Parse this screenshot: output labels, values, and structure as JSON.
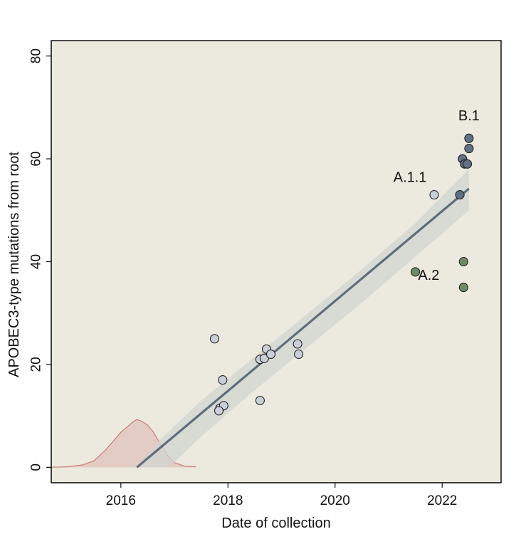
{
  "chart_data": {
    "type": "scatter",
    "xlabel": "Date of collection",
    "ylabel": "APOBEC3-type mutations from root",
    "xlim": [
      2014.7,
      2023.1
    ],
    "ylim": [
      -3,
      83
    ],
    "xticks": [
      2016,
      2018,
      2020,
      2022
    ],
    "yticks": [
      0,
      20,
      40,
      60,
      80
    ],
    "colors": {
      "panel": "#ece9df",
      "ribbon": "#d2d4d0",
      "regression_line": "#5d6e7d",
      "density_fill": "#e2c7bf",
      "density_line": "#c97f74",
      "point_outline": "#222222"
    },
    "series": [
      {
        "label_key": "light",
        "color": "#c9cfd9",
        "points": [
          [
            2017.75,
            25
          ],
          [
            2017.9,
            17
          ],
          [
            2017.85,
            11.5
          ],
          [
            2017.92,
            12
          ],
          [
            2017.83,
            11
          ],
          [
            2018.6,
            13
          ],
          [
            2018.6,
            21
          ],
          [
            2018.68,
            21.2
          ],
          [
            2018.72,
            23
          ],
          [
            2018.8,
            22
          ],
          [
            2019.3,
            24
          ],
          [
            2019.32,
            22
          ],
          [
            2021.85,
            53
          ]
        ]
      },
      {
        "label_key": "dark",
        "color": "#5f7182",
        "points": [
          [
            2022.33,
            53
          ],
          [
            2022.38,
            60
          ],
          [
            2022.42,
            59
          ],
          [
            2022.47,
            59
          ],
          [
            2022.5,
            62
          ],
          [
            2022.5,
            64
          ]
        ]
      },
      {
        "label_key": "green",
        "color": "#708a68",
        "points": [
          [
            2021.5,
            38
          ],
          [
            2022.4,
            40
          ],
          [
            2022.4,
            35
          ]
        ]
      }
    ],
    "regression": {
      "x": [
        2016.3,
        2022.5
      ],
      "y": [
        0,
        54.2
      ],
      "ci_upper": [
        [
          2016.3,
          0
        ],
        [
          2016.7,
          5
        ],
        [
          2017.5,
          13
        ],
        [
          2018.5,
          21.5
        ],
        [
          2019.5,
          30
        ],
        [
          2020.5,
          38.5
        ],
        [
          2021.5,
          47.5
        ],
        [
          2022.5,
          58
        ]
      ],
      "ci_lower": [
        [
          2022.5,
          50
        ],
        [
          2021.5,
          41
        ],
        [
          2020.5,
          32
        ],
        [
          2019.5,
          23.5
        ],
        [
          2018.5,
          15
        ],
        [
          2017.5,
          6
        ],
        [
          2017.0,
          1
        ],
        [
          2016.85,
          0
        ]
      ]
    },
    "density": {
      "x": [
        2014.7,
        2015.0,
        2015.3,
        2015.5,
        2015.7,
        2015.9,
        2016.0,
        2016.1,
        2016.2,
        2016.25,
        2016.3,
        2016.35,
        2016.4,
        2016.5,
        2016.6,
        2016.7,
        2016.8,
        2016.9,
        2017.0,
        2017.2,
        2017.4
      ],
      "y": [
        0,
        0.1,
        0.5,
        1.3,
        3.2,
        5.6,
        6.8,
        7.7,
        8.6,
        9.0,
        9.3,
        9.1,
        8.9,
        8.2,
        7.0,
        5.2,
        3.5,
        1.9,
        0.9,
        0.2,
        0.1
      ]
    },
    "annotations": [
      {
        "text": "B.1",
        "x": 2022.5,
        "y": 67.5
      },
      {
        "text": "A.1.1",
        "x": 2021.4,
        "y": 55.5
      },
      {
        "text": "A.2",
        "x": 2021.75,
        "y": 36.5
      }
    ]
  }
}
